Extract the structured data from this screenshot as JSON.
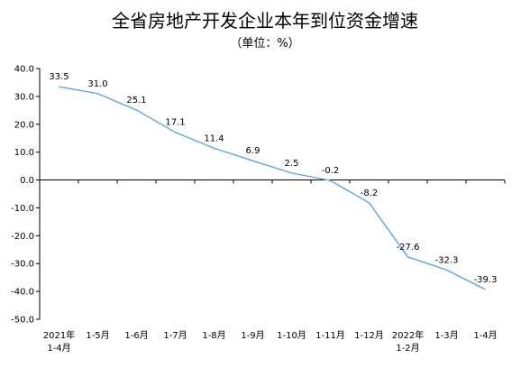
{
  "chart_data": {
    "type": "line",
    "title": "全省房地产开发企业本年到位资金增速",
    "subtitle": "（单位：%）",
    "categories": [
      "2021年\n1-4月",
      "1-5月",
      "1-6月",
      "1-7月",
      "1-8月",
      "1-9月",
      "1-10月",
      "1-11月",
      "1-12月",
      "2022年\n1-2月",
      "1-3月",
      "1-4月"
    ],
    "series": [
      {
        "values": [
          33.5,
          31.0,
          25.1,
          17.1,
          11.4,
          6.9,
          2.5,
          -0.2,
          -8.2,
          -27.6,
          -32.3,
          -39.3
        ]
      }
    ],
    "value_labels": [
      "33.5",
      "31.0",
      "25.1",
      "17.1",
      "11.4",
      "6.9",
      "2.5",
      "-0.2",
      "-8.2",
      "-27.6",
      "-32.3",
      "-39.3"
    ],
    "y_ticks": [
      "40.0",
      "30.0",
      "20.0",
      "10.0",
      "0.0",
      "-10.0",
      "-20.0",
      "-30.0",
      "-40.0",
      "-50.0"
    ],
    "ylim": [
      -50,
      40
    ],
    "grid": false,
    "line_color": "#6fa8dc"
  }
}
